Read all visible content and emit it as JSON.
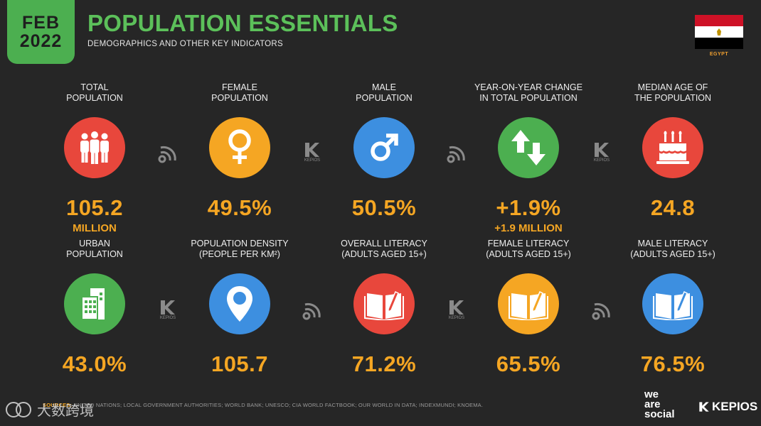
{
  "header": {
    "month": "FEB",
    "year": "2022",
    "title": "POPULATION ESSENTIALS",
    "subtitle": "DEMOGRAPHICS AND OTHER KEY INDICATORS",
    "country": "EGYPT"
  },
  "colors": {
    "red": "#e8473c",
    "orange": "#f5a623",
    "blue": "#3d8fe0",
    "green": "#4caf50",
    "bg": "#262626"
  },
  "stats": [
    {
      "label1": "TOTAL",
      "label2": "POPULATION",
      "value": "105.2",
      "sub": "MILLION",
      "icon": "people-icon"
    },
    {
      "label1": "FEMALE",
      "label2": "POPULATION",
      "value": "49.5%",
      "sub": "",
      "icon": "female-icon"
    },
    {
      "label1": "MALE",
      "label2": "POPULATION",
      "value": "50.5%",
      "sub": "",
      "icon": "male-icon"
    },
    {
      "label1": "YEAR-ON-YEAR CHANGE",
      "label2": "IN TOTAL POPULATION",
      "value": "+1.9%",
      "sub": "+1.9 MILLION",
      "icon": "up-down-arrows-icon"
    },
    {
      "label1": "MEDIAN AGE OF",
      "label2": "THE POPULATION",
      "value": "24.8",
      "sub": "",
      "icon": "birthday-cake-icon"
    },
    {
      "label1": "URBAN",
      "label2": "POPULATION",
      "value": "43.0%",
      "sub": "",
      "icon": "building-icon"
    },
    {
      "label1": "POPULATION DENSITY",
      "label2": "(PEOPLE PER KM²)",
      "value": "105.7",
      "sub": "",
      "icon": "map-pin-icon"
    },
    {
      "label1": "OVERALL LITERACY",
      "label2": "(ADULTS AGED 15+)",
      "value": "71.2%",
      "sub": "",
      "icon": "book-icon"
    },
    {
      "label1": "FEMALE LITERACY",
      "label2": "(ADULTS AGED 15+)",
      "value": "65.5%",
      "sub": "",
      "icon": "book-icon"
    },
    {
      "label1": "MALE LITERACY",
      "label2": "(ADULTS AGED 15+)",
      "value": "76.5%",
      "sub": "",
      "icon": "book-icon"
    }
  ],
  "marks": {
    "kepios_small": "KEPIOS"
  },
  "footer": {
    "sources_label": "SOURCES:",
    "sources_text": " UNITED NATIONS; LOCAL GOVERNMENT AUTHORITIES; WORLD BANK; UNESCO; CIA WORLD FACTBOOK; OUR WORLD IN DATA; INDEXMUNDI; KNOEMA.",
    "was_line1": "we",
    "was_line2": "are",
    "was_line3": "social",
    "kepios": "KEPIOS",
    "watermark": "大数跨境"
  }
}
